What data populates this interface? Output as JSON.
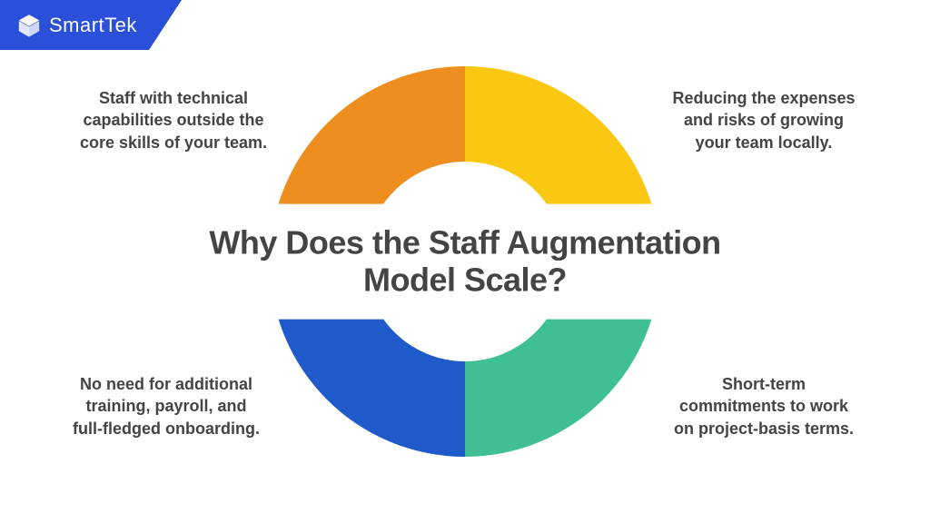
{
  "brand": {
    "name": "SmartTek",
    "badge_bg": "#2a4fd8",
    "text_color": "#ffffff"
  },
  "title": "Why Does the Staff Augmentation Model Scale?",
  "title_color": "#444444",
  "title_fontsize": 36,
  "background_color": "#ffffff",
  "donut": {
    "type": "pie",
    "outer_radius": 215,
    "inner_radius": 110,
    "segments": [
      {
        "key": "top_left",
        "start_deg": 180,
        "end_deg": 270,
        "color": "#ed8e1e"
      },
      {
        "key": "top_right",
        "start_deg": 270,
        "end_deg": 360,
        "color": "#fac712"
      },
      {
        "key": "bottom_right",
        "start_deg": 0,
        "end_deg": 90,
        "color": "#3fbf94"
      },
      {
        "key": "bottom_left",
        "start_deg": 90,
        "end_deg": 180,
        "color": "#1f5acb"
      }
    ]
  },
  "captions": {
    "top_left": "Staff with technical capabilities outside the core skills of your team.",
    "top_right": "Reducing the expenses and risks of growing your team locally.",
    "bottom_left": "No need for additional training, payroll, and full-fledged onboarding.",
    "bottom_right": "Short-term commitments to work on project-basis terms."
  },
  "caption_style": {
    "fontsize": 18,
    "fontweight": 700,
    "color": "#444444"
  }
}
